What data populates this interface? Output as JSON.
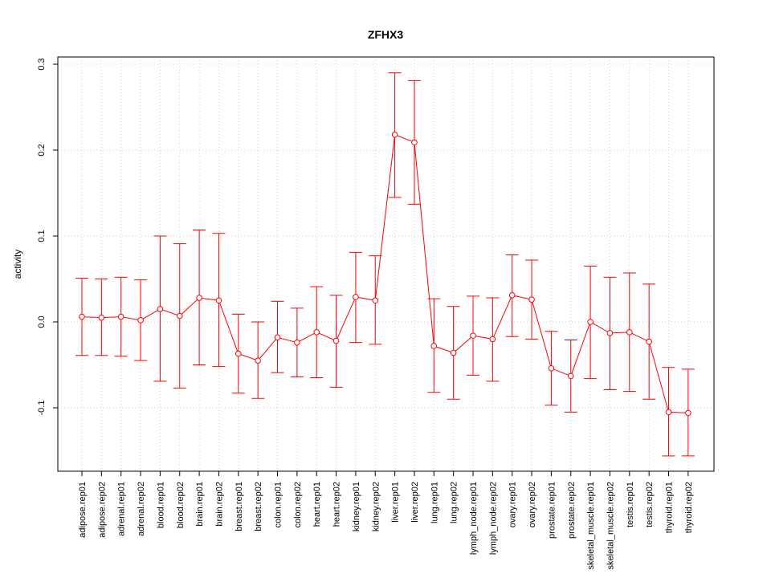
{
  "chart_data": {
    "type": "line",
    "title": "ZFHX3",
    "xlabel": "",
    "ylabel": "activity",
    "ylim": [
      -0.17,
      0.305
    ],
    "y_ticks": [
      -0.1,
      0.0,
      0.1,
      0.2,
      0.3
    ],
    "y_tick_labels": [
      "-0.1",
      "0.0",
      "0.1",
      "0.2",
      "0.3"
    ],
    "grid": true,
    "color": "#ff0000",
    "categories": [
      "adipose.rep01",
      "adipose.rep02",
      "adrenal.rep01",
      "adrenal.rep02",
      "blood.rep01",
      "blood.rep02",
      "brain.rep01",
      "brain.rep02",
      "breast.rep01",
      "breast.rep02",
      "colon.rep01",
      "colon.rep02",
      "heart.rep01",
      "heart.rep02",
      "kidney.rep01",
      "kidney.rep02",
      "liver.rep01",
      "liver.rep02",
      "lung.rep01",
      "lung.rep02",
      "lymph_node.rep01",
      "lymph_node.rep02",
      "ovary.rep01",
      "ovary.rep02",
      "prostate.rep01",
      "prostate.rep02",
      "skeletal_muscle.rep01",
      "skeletal_muscle.rep02",
      "testis.rep01",
      "testis.rep02",
      "thyroid.rep01",
      "thyroid.rep02"
    ],
    "values": [
      0.006,
      0.005,
      0.006,
      0.002,
      0.015,
      0.007,
      0.028,
      0.025,
      -0.037,
      -0.045,
      -0.018,
      -0.024,
      -0.012,
      -0.022,
      0.029,
      0.025,
      0.218,
      0.209,
      -0.028,
      -0.036,
      -0.016,
      -0.02,
      0.031,
      0.026,
      -0.054,
      -0.063,
      0.0,
      -0.013,
      -0.012,
      -0.023,
      -0.105,
      -0.106
    ],
    "upper": [
      0.051,
      0.05,
      0.052,
      0.049,
      0.1,
      0.091,
      0.107,
      0.103,
      0.009,
      0.0,
      0.024,
      0.016,
      0.041,
      0.031,
      0.081,
      0.077,
      0.29,
      0.281,
      0.027,
      0.018,
      0.03,
      0.028,
      0.078,
      0.072,
      -0.011,
      -0.021,
      0.065,
      0.052,
      0.057,
      0.044,
      -0.053,
      -0.055
    ],
    "lower": [
      -0.039,
      -0.039,
      -0.04,
      -0.045,
      -0.069,
      -0.077,
      -0.05,
      -0.052,
      -0.083,
      -0.089,
      -0.059,
      -0.064,
      -0.065,
      -0.076,
      -0.024,
      -0.026,
      0.145,
      0.137,
      -0.082,
      -0.09,
      -0.062,
      -0.069,
      -0.017,
      -0.02,
      -0.097,
      -0.105,
      -0.066,
      -0.079,
      -0.081,
      -0.09,
      -0.156,
      -0.156
    ]
  }
}
